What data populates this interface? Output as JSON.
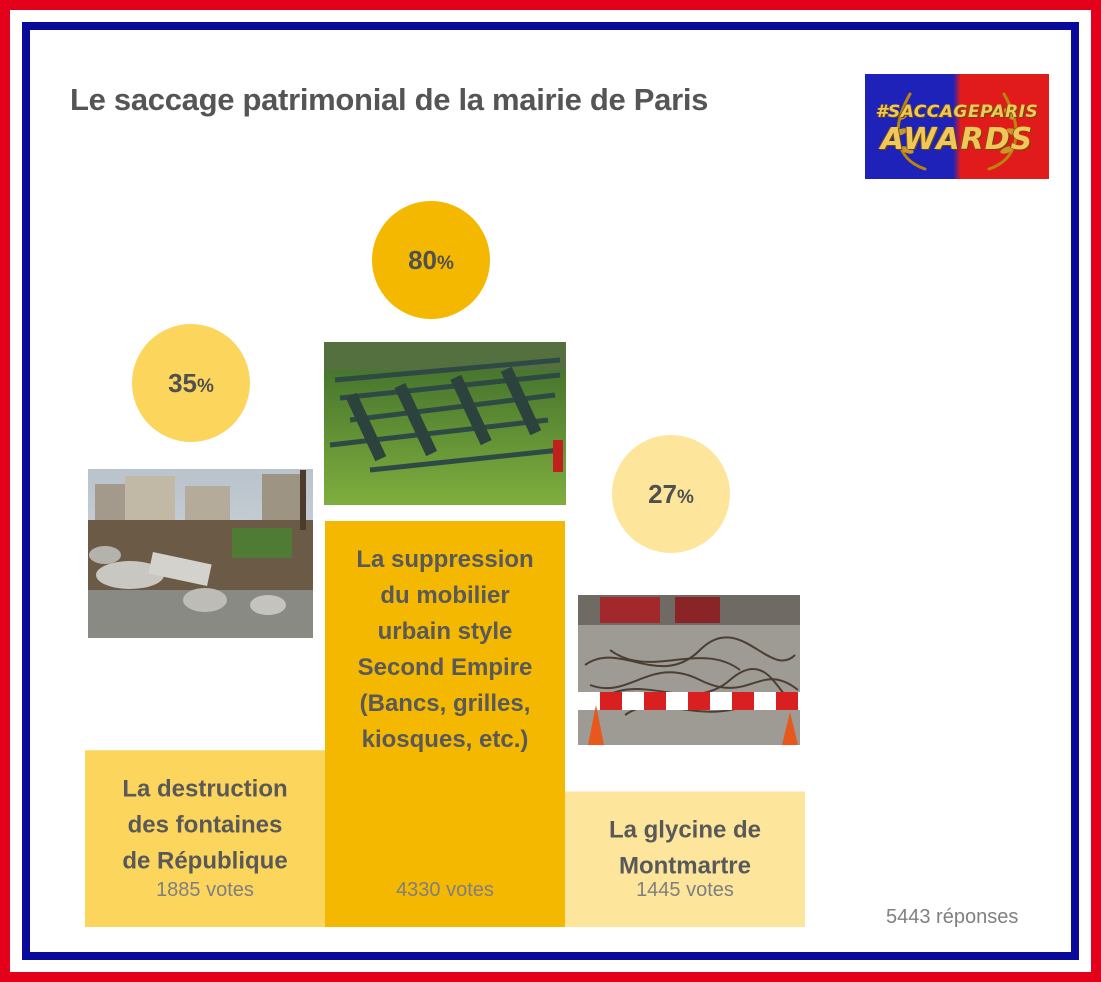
{
  "header": {
    "title": "Le saccage patrimonial de la mairie de Paris",
    "logo_line1": "#SACCAGEPARIS",
    "logo_line2": "AWARDS"
  },
  "colors": {
    "frame_red": "#e4001a",
    "frame_blue": "#0a0a9a",
    "bar_1": "#fcd55d",
    "bar_2": "#f4b800",
    "bar_3": "#fde69c"
  },
  "chart_data": {
    "type": "bar",
    "categories": [
      "La destruction des fontaines de République",
      "La suppression du mobilier urbain style Second Empire (Bancs, grilles, kiosques, etc.)",
      "La glycine de Montmartre"
    ],
    "label_lines": [
      [
        "La destruction",
        "des fontaines",
        "de République"
      ],
      [
        "La suppression",
        "du mobilier",
        "urbain style",
        "Second Empire",
        "(Bancs, grilles,",
        "kiosques, etc.)"
      ],
      [
        "La glycine de",
        "Montmartre"
      ]
    ],
    "values": [
      35,
      80,
      27
    ],
    "value_unit": "%",
    "votes": [
      1885,
      4330,
      1445
    ],
    "vote_labels": [
      "1885 votes",
      "4330 votes",
      "1445 votes"
    ],
    "title": "Le saccage patrimonial de la mairie de Paris",
    "xlabel": "",
    "ylabel": "",
    "grid": false,
    "legend": "none"
  },
  "photos": [
    {
      "name": "republique-fountain-photo",
      "icon": "rubble-photo"
    },
    {
      "name": "second-empire-benches-photo",
      "icon": "benches-photo"
    },
    {
      "name": "montmartre-wisteria-photo",
      "icon": "branches-photo"
    }
  ],
  "footer": {
    "total_label": "5443 réponses"
  }
}
